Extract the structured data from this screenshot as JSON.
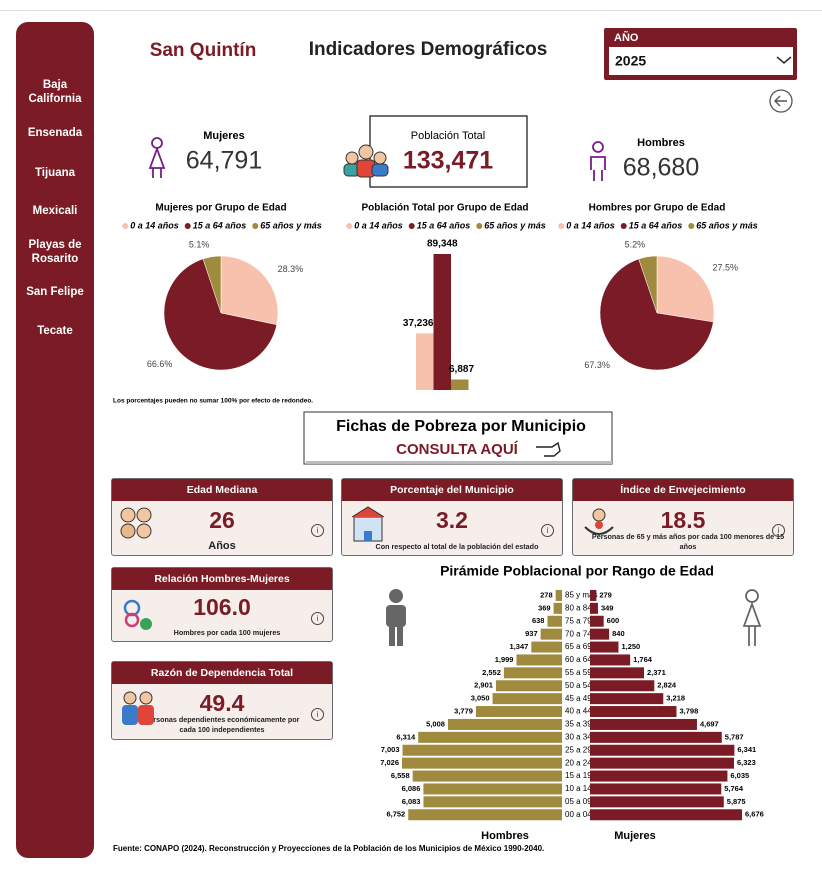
{
  "sidebar": {
    "items": [
      "Baja California",
      "Ensenada",
      "Tijuana",
      "Mexicali",
      "Playas de Rosarito",
      "San Felipe",
      "Tecate"
    ]
  },
  "header": {
    "municipio": "San Quintín",
    "title": "Indicadores Demográficos",
    "year_label": "AÑO",
    "year": "2025"
  },
  "totals": {
    "women_label": "Mujeres",
    "women": "64,791",
    "total_label": "Población Total",
    "total": "133,471",
    "men_label": "Hombres",
    "men": "68,680"
  },
  "note": "Los porcentajes pueden no sumar 100% por efecto de redondeo.",
  "button": {
    "title": "Fichas de Pobreza por Municipio",
    "action": "CONSULTA AQUÍ"
  },
  "cards": [
    {
      "title": "Edad Mediana",
      "value": "26",
      "caption": "Años"
    },
    {
      "title": "Porcentaje del Municipio",
      "value": "3.2",
      "caption": "Con respecto al total de la población del estado"
    },
    {
      "title": "Índice de Envejecimiento",
      "value": "18.5",
      "caption": "Personas  de 65 y más años por cada 100 menores de 15 años"
    },
    {
      "title": "Relación Hombres-Mujeres",
      "value": "106.0",
      "caption": "Hombres por cada 100 mujeres"
    },
    {
      "title": "Razón de Dependencia Total",
      "value": "49.4",
      "caption": "Personas dependientes económicamente por cada 100 independientes"
    }
  ],
  "chart_data": [
    {
      "type": "pie",
      "title": "Mujeres por Grupo de Edad",
      "categories": [
        "0 a 14 años",
        "15 a 64 años",
        "65 años y más"
      ],
      "values": [
        28.3,
        66.6,
        5.1
      ],
      "value_labels": [
        "28.3%",
        "66.6%",
        "5.1%"
      ],
      "colors": [
        "#f8c1ad",
        "#7a1b26",
        "#a08a3e"
      ]
    },
    {
      "type": "bar",
      "title": "Población Total por Grupo de Edad",
      "categories": [
        "0 a 14 años",
        "15 a 64 años",
        "65 años y más"
      ],
      "values": [
        37236,
        89348,
        6887
      ],
      "value_labels": [
        "37,236",
        "89,348",
        "6,887"
      ],
      "colors": [
        "#f8c1ad",
        "#7a1b26",
        "#a08a3e"
      ]
    },
    {
      "type": "pie",
      "title": "Hombres por Grupo de Edad",
      "categories": [
        "0 a 14 años",
        "15 a 64 años",
        "65 años y más"
      ],
      "values": [
        27.5,
        67.3,
        5.2
      ],
      "value_labels": [
        "27.5%",
        "67.3%",
        "5.2%"
      ],
      "colors": [
        "#f8c1ad",
        "#7a1b26",
        "#a08a3e"
      ]
    },
    {
      "type": "pyramid",
      "title": "Pirámide Poblacional por Rango de Edad",
      "categories": [
        "85 y más",
        "80 a 84",
        "75 a 79",
        "70 a 74",
        "65 a 69",
        "60 a 64",
        "55 a 59",
        "50 a 54",
        "45 a 49",
        "40 a 44",
        "35 a 39",
        "30 a 34",
        "25 a 29",
        "20 a 24",
        "15 a 19",
        "10 a 14",
        "05 a 09",
        "00 a 04"
      ],
      "series": [
        {
          "name": "Hombres",
          "color": "#a08a3e",
          "values": [
            278,
            369,
            638,
            937,
            1347,
            1999,
            2552,
            2901,
            3050,
            3779,
            5008,
            6314,
            7003,
            7026,
            6558,
            6086,
            6083,
            6752
          ],
          "value_labels": [
            "278",
            "369",
            "638",
            "937",
            "1,347",
            "1,999",
            "2,552",
            "2,901",
            "3,050",
            "3,779",
            "5,008",
            "6,314",
            "7,003",
            "7,026",
            "6,558",
            "6,086",
            "6,083",
            "6,752"
          ]
        },
        {
          "name": "Mujeres",
          "color": "#7a1b26",
          "values": [
            279,
            349,
            600,
            840,
            1250,
            1764,
            2371,
            2824,
            3218,
            3798,
            4697,
            5787,
            6341,
            6323,
            6035,
            5764,
            5875,
            6676
          ],
          "value_labels": [
            "279",
            "349",
            "600",
            "840",
            "1,250",
            "1,764",
            "2,371",
            "2,824",
            "3,218",
            "3,798",
            "4,697",
            "5,787",
            "6,341",
            "6,323",
            "6,035",
            "5,764",
            "5,875",
            "6,676"
          ]
        }
      ]
    }
  ],
  "source": "Fuente: CONAPO (2024). Reconstrucción y Proyecciones de la Población de los Municipios de México 1990-2040."
}
